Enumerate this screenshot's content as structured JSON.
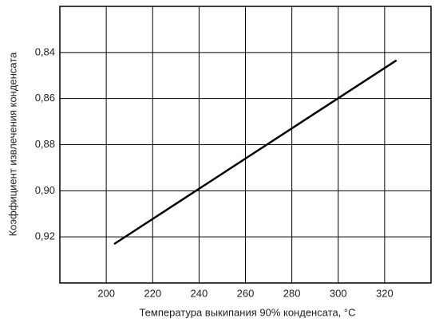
{
  "chart_data": {
    "type": "line",
    "xlabel": "Температура выкипания 90% конденсата, °C",
    "ylabel": "Коэффициент извлечения конденсата",
    "x": [
      203.4,
      325.1
    ],
    "series": [
      {
        "color": "#000000",
        "values": [
          0.9231,
          0.8434
        ]
      }
    ],
    "xlim": [
      180,
      340
    ],
    "xticks": [
      200,
      220,
      240,
      260,
      280,
      300,
      320
    ],
    "ylim": [
      0.82,
      0.94
    ],
    "y_inverted": true,
    "yticks": [
      {
        "value": 0.84,
        "label": "0,84"
      },
      {
        "value": 0.86,
        "label": "0,86"
      },
      {
        "value": 0.88,
        "label": "0,88"
      },
      {
        "value": 0.9,
        "label": "0,90"
      },
      {
        "value": 0.92,
        "label": "0,92"
      }
    ],
    "grid": true
  }
}
